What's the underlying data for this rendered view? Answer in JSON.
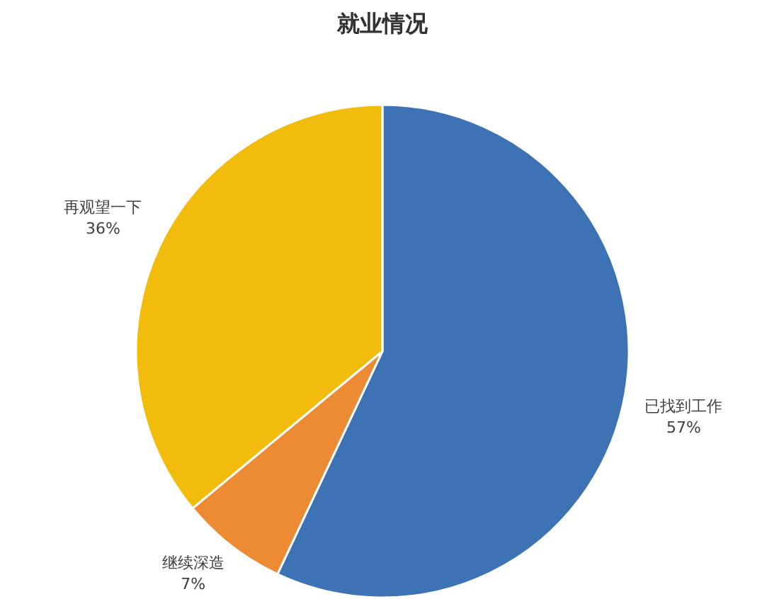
{
  "chart_data": {
    "type": "pie",
    "title": "就业情况",
    "categories": [
      "已找到工作",
      "继续深造",
      "再观望一下"
    ],
    "values": [
      57,
      7,
      36
    ],
    "colors": [
      "#3d72b4",
      "#ed8b35",
      "#f2bc0c"
    ],
    "value_labels": [
      "57%",
      "7%",
      "36%"
    ]
  }
}
